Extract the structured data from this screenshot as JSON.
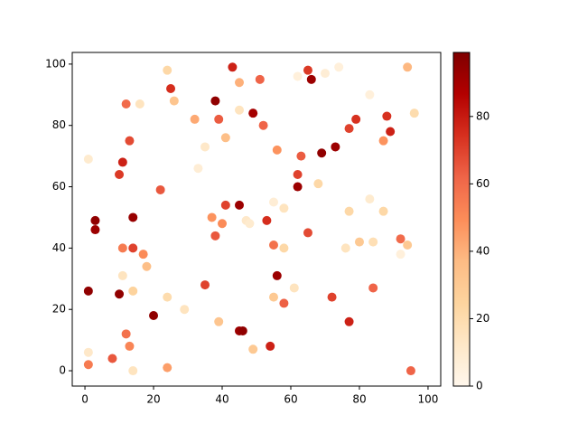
{
  "chart_data": {
    "type": "scatter",
    "x": [
      1,
      3,
      3,
      1,
      1,
      1,
      8,
      10,
      10,
      11,
      11,
      11,
      12,
      13,
      12,
      13,
      14,
      14,
      14,
      14,
      16,
      17,
      18,
      20,
      22,
      24,
      24,
      24,
      25,
      26,
      29,
      32,
      33,
      35,
      35,
      37,
      38,
      38,
      39,
      39,
      40,
      41,
      41,
      43,
      45,
      45,
      45,
      45,
      46,
      47,
      48,
      49,
      49,
      51,
      52,
      53,
      54,
      55,
      55,
      55,
      56,
      56,
      58,
      58,
      58,
      61,
      62,
      62,
      62,
      63,
      65,
      65,
      66,
      68,
      69,
      70,
      72,
      73,
      74,
      76,
      77,
      77,
      77,
      79,
      80,
      83,
      83,
      84,
      84,
      87,
      87,
      88,
      89,
      92,
      92,
      94,
      94,
      95,
      96
    ],
    "values": [
      69,
      49,
      46,
      26,
      6,
      2,
      4,
      25,
      64,
      68,
      40,
      31,
      12,
      8,
      87,
      75,
      50,
      40,
      26,
      0,
      87,
      38,
      34,
      18,
      59,
      98,
      24,
      1,
      92,
      88,
      20,
      82,
      66,
      73,
      28,
      50,
      44,
      88,
      82,
      16,
      48,
      76,
      54,
      99,
      94,
      85,
      54,
      13,
      13,
      49,
      48,
      7,
      84,
      95,
      80,
      49,
      8,
      55,
      41,
      24,
      31,
      72,
      53,
      40,
      22,
      27,
      96,
      64,
      60,
      70,
      45,
      98,
      95,
      61,
      71,
      97,
      24,
      73,
      99,
      40,
      52,
      79,
      16,
      82,
      42,
      90,
      56,
      42,
      27,
      75,
      52,
      83,
      78,
      43,
      38,
      99,
      41,
      0,
      84
    ],
    "color_values": [
      10,
      95,
      92,
      95,
      12,
      55,
      65,
      95,
      72,
      78,
      55,
      15,
      58,
      52,
      60,
      68,
      93,
      70,
      25,
      15,
      15,
      50,
      35,
      95,
      65,
      22,
      20,
      45,
      75,
      32,
      15,
      42,
      8,
      12,
      70,
      48,
      65,
      95,
      64,
      32,
      50,
      35,
      70,
      78,
      40,
      15,
      92,
      92,
      95,
      12,
      10,
      30,
      90,
      62,
      62,
      75,
      78,
      8,
      58,
      30,
      92,
      48,
      15,
      22,
      63,
      15,
      6,
      70,
      92,
      64,
      68,
      72,
      92,
      22,
      95,
      8,
      70,
      92,
      6,
      15,
      22,
      70,
      78,
      74,
      30,
      6,
      10,
      18,
      62,
      48,
      22,
      74,
      78,
      60,
      6,
      38,
      30,
      62,
      20
    ],
    "colormap": "OrRd",
    "clim": [
      0,
      99
    ],
    "xlim": [
      -3.7,
      103.7
    ],
    "ylim": [
      -5,
      103.8
    ],
    "xticks": [
      0,
      20,
      40,
      60,
      80,
      100
    ],
    "yticks": [
      0,
      20,
      40,
      60,
      80,
      100
    ],
    "colorbar_ticks": [
      0,
      20,
      40,
      60,
      80
    ]
  }
}
